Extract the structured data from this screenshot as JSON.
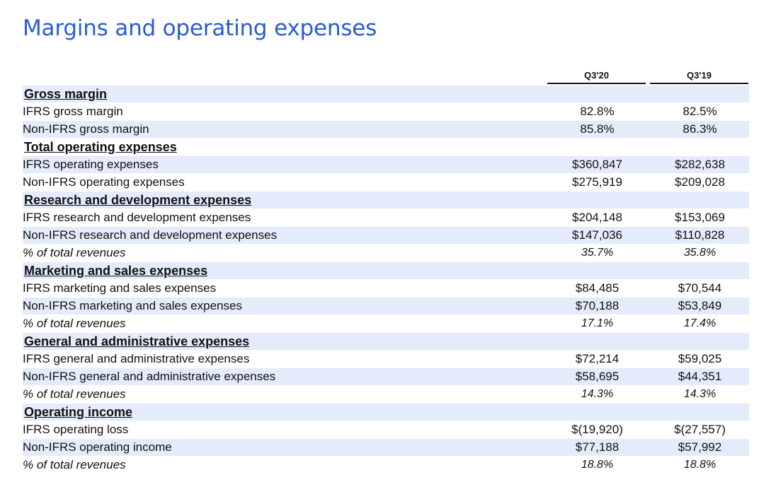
{
  "title": "Margins and operating expenses",
  "columns": [
    "Q3'20",
    "Q3'19"
  ],
  "rows": [
    {
      "kind": "section",
      "label": "Gross margin"
    },
    {
      "kind": "row",
      "label": "IFRS gross margin",
      "q320": "82.8%",
      "q319": "82.5%"
    },
    {
      "kind": "row",
      "label": "Non-IFRS gross margin",
      "q320": "85.8%",
      "q319": "86.3%"
    },
    {
      "kind": "section",
      "label": "Total operating expenses"
    },
    {
      "kind": "row",
      "label": "IFRS operating expenses",
      "q320": "$360,847",
      "q319": "$282,638"
    },
    {
      "kind": "row",
      "label": "Non-IFRS operating expenses",
      "q320": "$275,919",
      "q319": "$209,028"
    },
    {
      "kind": "section",
      "label": "Research and development expenses"
    },
    {
      "kind": "row",
      "label": "IFRS research and development expenses",
      "q320": "$204,148",
      "q319": "$153,069"
    },
    {
      "kind": "row",
      "label": "Non-IFRS research and development expenses",
      "q320": "$147,036",
      "q319": "$110,828"
    },
    {
      "kind": "pct",
      "label": "% of total revenues",
      "q320": "35.7%",
      "q319": "35.8%"
    },
    {
      "kind": "section",
      "label": "Marketing and sales expenses"
    },
    {
      "kind": "row",
      "label": "IFRS marketing and sales expenses",
      "q320": "$84,485",
      "q319": "$70,544"
    },
    {
      "kind": "row",
      "label": "Non-IFRS marketing and sales expenses",
      "q320": "$70,188",
      "q319": "$53,849"
    },
    {
      "kind": "pct",
      "label": "% of total revenues",
      "q320": "17.1%",
      "q319": "17.4%"
    },
    {
      "kind": "section",
      "label": "General and administrative expenses"
    },
    {
      "kind": "row",
      "label": "IFRS general and administrative expenses",
      "q320": "$72,214",
      "q319": "$59,025"
    },
    {
      "kind": "row",
      "label": "Non-IFRS general and administrative expenses",
      "q320": "$58,695",
      "q319": "$44,351"
    },
    {
      "kind": "pct",
      "label": "% of total revenues",
      "q320": "14.3%",
      "q319": "14.3%"
    },
    {
      "kind": "section",
      "label": "Operating income"
    },
    {
      "kind": "row",
      "label": "IFRS operating loss",
      "q320": "$(19,920)",
      "q319": "$(27,557)"
    },
    {
      "kind": "row",
      "label": "Non-IFRS operating income",
      "q320": "$77,188",
      "q319": "$57,992"
    },
    {
      "kind": "pct",
      "label": "% of total revenues",
      "q320": "18.8%",
      "q319": "18.8%"
    }
  ]
}
